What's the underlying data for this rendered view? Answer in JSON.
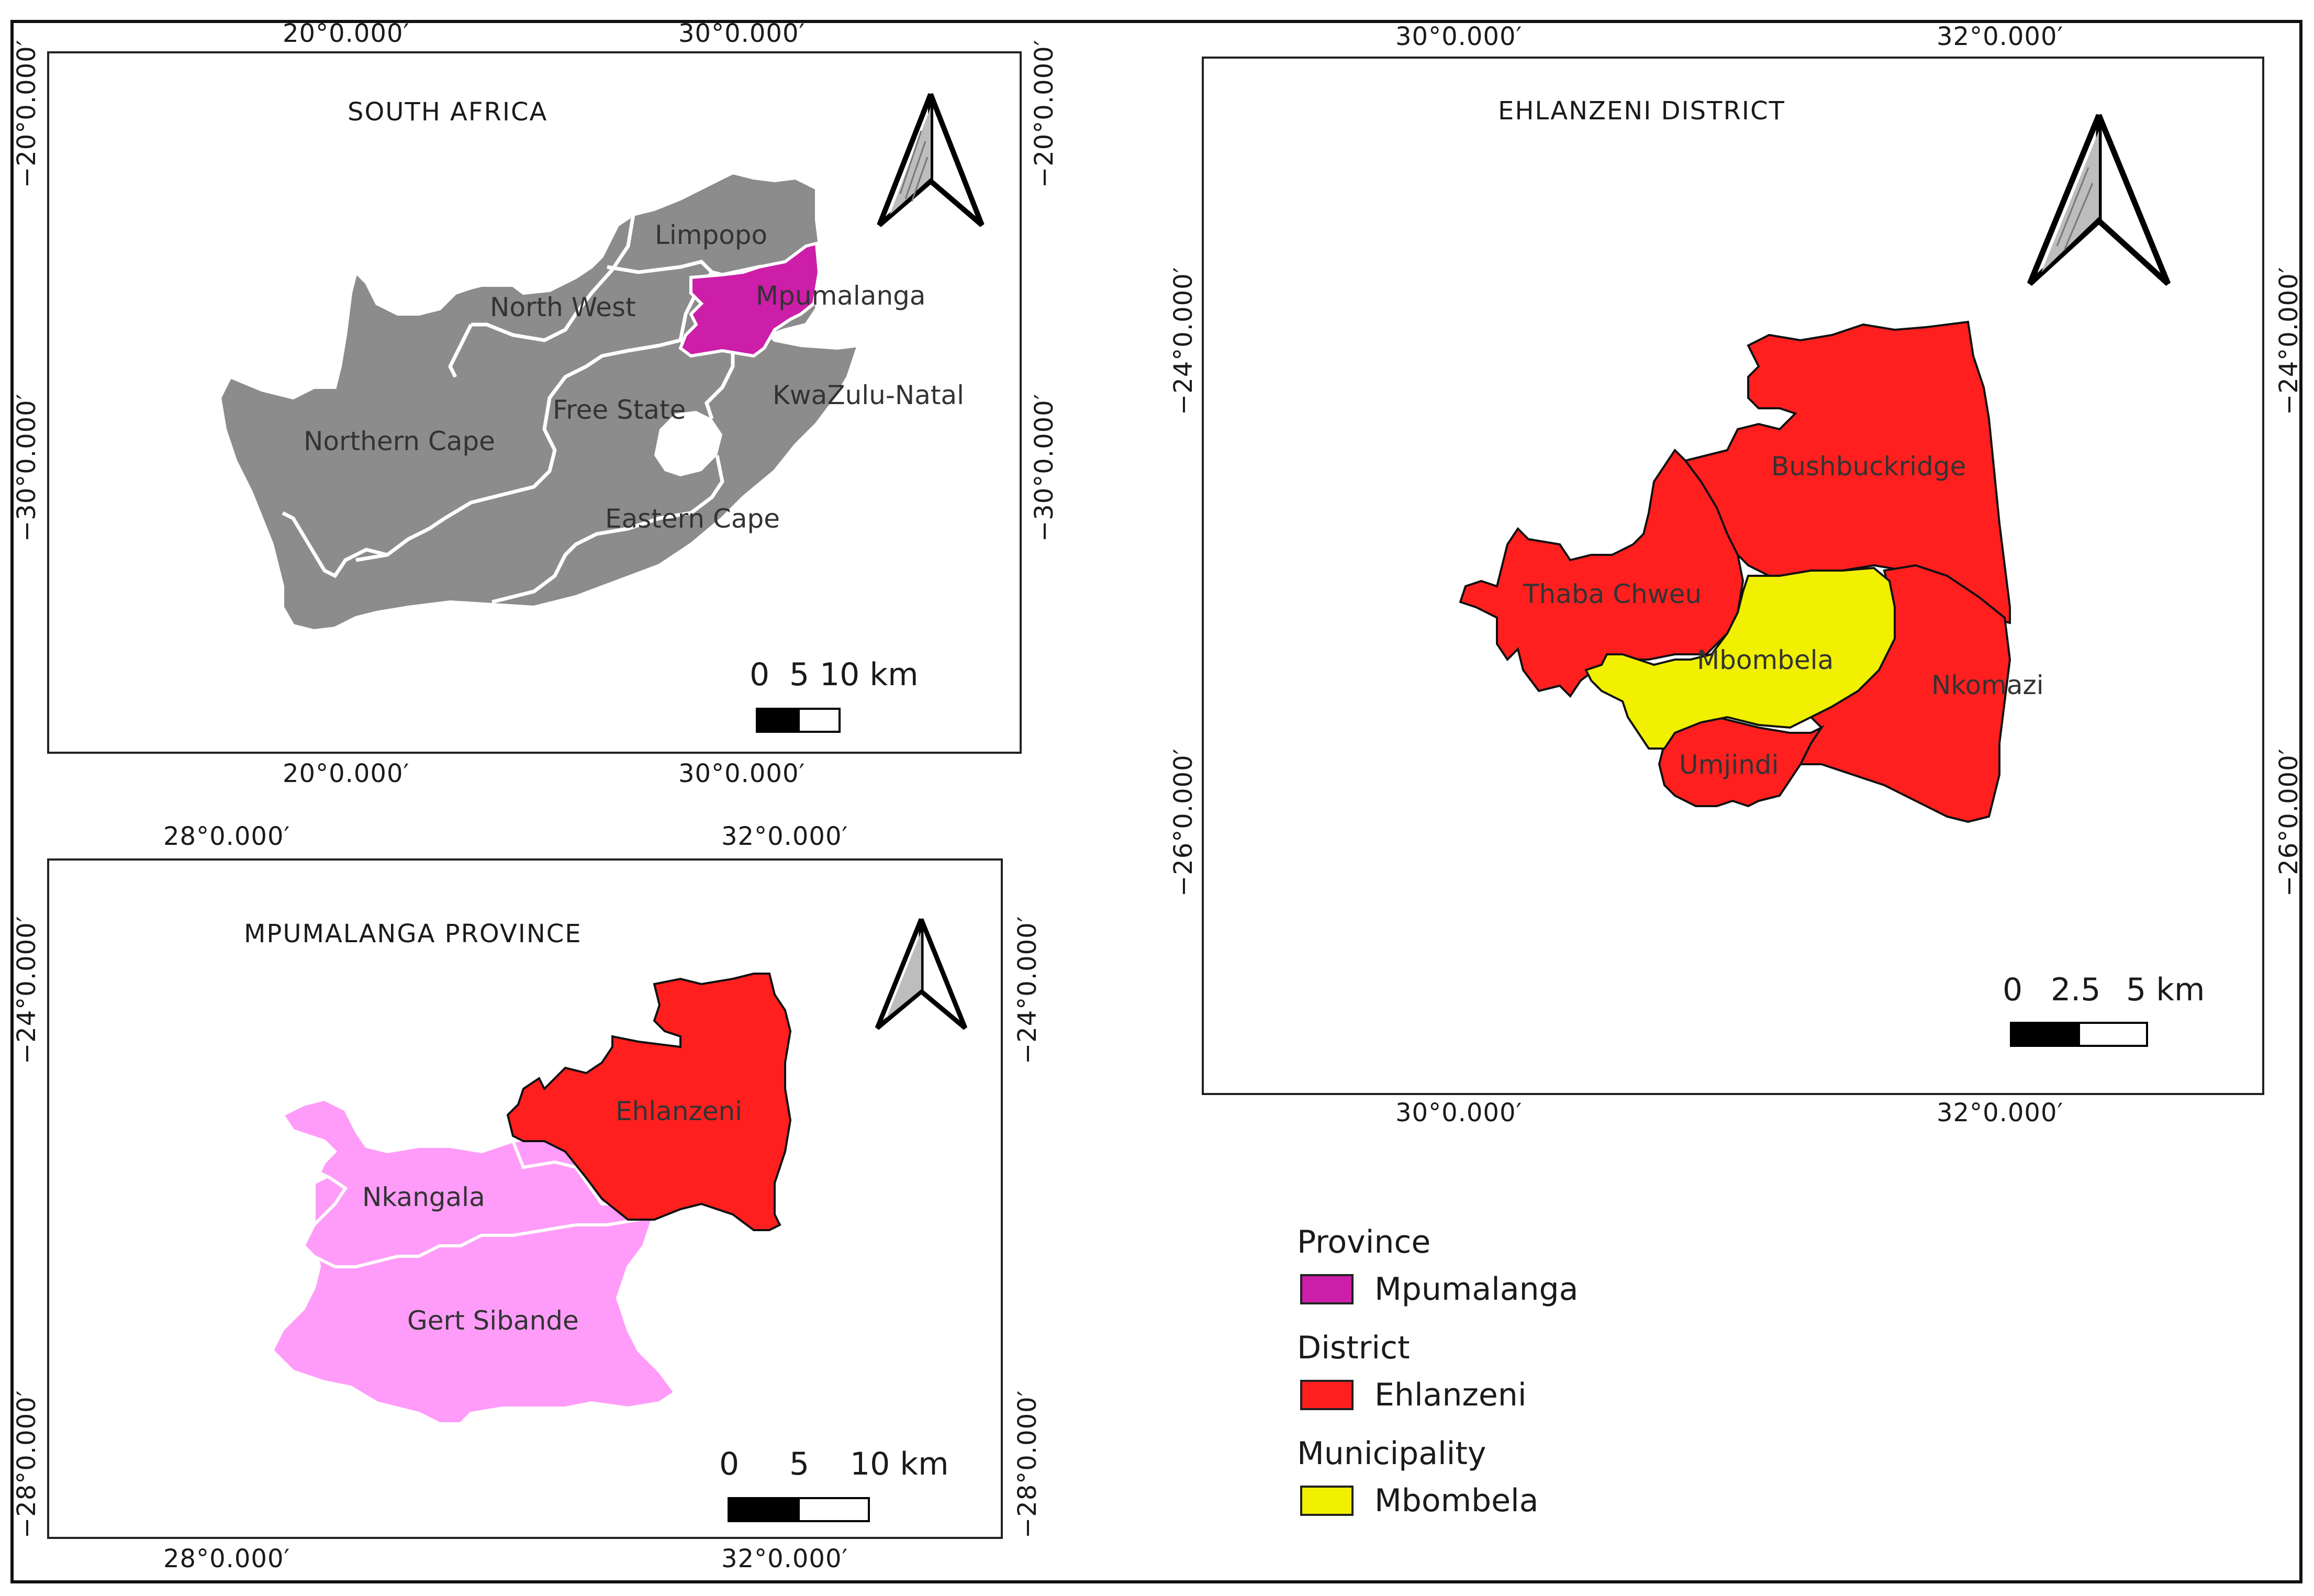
{
  "maps": {
    "south_africa": {
      "title": "SOUTH AFRICA",
      "lon_labels": [
        "20°0.000′",
        "30°0.000′"
      ],
      "lat_labels": [
        "−20°0.000′",
        "−30°0.000′"
      ],
      "regions": [
        "Limpopo",
        "Mpumalanga",
        "North West",
        "Free State",
        "KwaZulu-Natal",
        "Northern Cape",
        "Eastern Cape"
      ],
      "highlighted_region": "Mpumalanga",
      "scale": {
        "ticks": [
          "0",
          "5",
          "10 km"
        ]
      }
    },
    "mpumalanga": {
      "title": "MPUMALANGA PROVINCE",
      "lon_labels": [
        "28°0.000′",
        "32°0.000′"
      ],
      "lat_labels": [
        "−24°0.000′",
        "−28°0.000′"
      ],
      "regions": [
        "Ehlanzeni",
        "Nkangala",
        "Gert Sibande"
      ],
      "highlighted_region": "Ehlanzeni",
      "scale": {
        "ticks": [
          "0",
          "5",
          "10 km"
        ]
      }
    },
    "ehlanzeni": {
      "title": "EHLANZENI DISTRICT",
      "lon_labels": [
        "30°0.000′",
        "32°0.000′"
      ],
      "lat_labels": [
        "−24°0.000′",
        "−26°0.000′"
      ],
      "regions": [
        "Bushbuckridge",
        "Thaba Chweu",
        "Mbombela",
        "Nkomazi",
        "Umjindi"
      ],
      "highlighted_region": "Mbombela",
      "scale": {
        "ticks": [
          "0",
          "2.5",
          "5 km"
        ]
      }
    }
  },
  "legend": {
    "groups": [
      {
        "heading": "Province",
        "label": "Mpumalanga",
        "color": "#cc1ea8"
      },
      {
        "heading": "District",
        "label": "Ehlanzeni",
        "color": "#ff1f1f"
      },
      {
        "heading": "Municipality",
        "label": "Mbombela",
        "color": "#f0f000"
      }
    ]
  },
  "colors": {
    "country_fill": "#8c8c8c",
    "province_highlight": "#cc1ea8",
    "district_fill": "#ff1f1f",
    "other_districts": "#ff9cf9",
    "municipality_highlight": "#f0f000"
  }
}
